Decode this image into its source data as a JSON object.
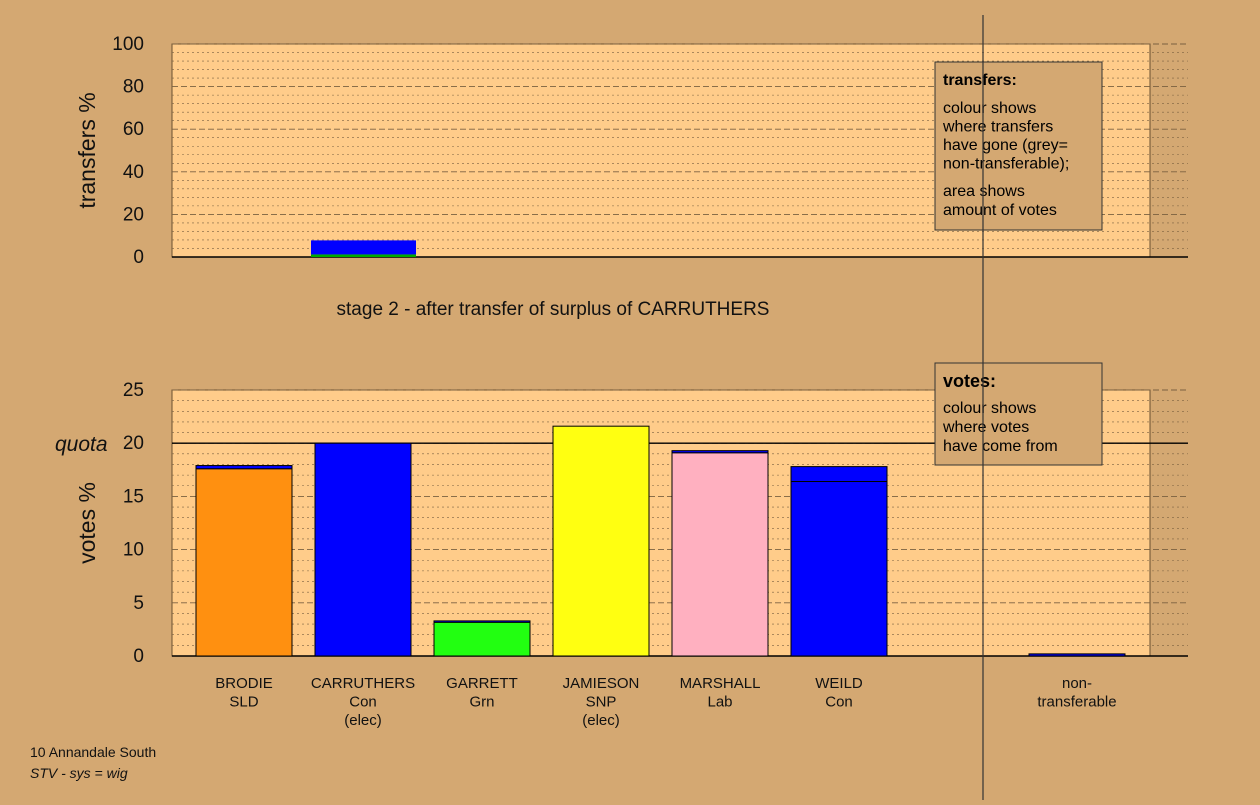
{
  "colors": {
    "page_bg": "#d4a872",
    "plot_bg": "#ffcc8a",
    "grid": "#7a6040",
    "axis": "#000000"
  },
  "chart_data": [
    {
      "type": "bar",
      "panel": "transfers",
      "ylabel": "transfers %",
      "ylim": [
        0,
        100
      ],
      "yticks": [
        0,
        20,
        40,
        60,
        80,
        100
      ],
      "grid": true,
      "bars": [
        {
          "category": "CARRUTHERS",
          "segments": [
            {
              "from": 0,
              "to": 1.2,
              "color": "#00aa00"
            },
            {
              "from": 1.2,
              "to": 7.8,
              "color": "#0000ff"
            }
          ]
        }
      ],
      "legend": {
        "placement": "top-right",
        "title": "transfers:",
        "lines1": [
          "colour shows",
          "where transfers",
          "have gone (grey=",
          "non-transferable);"
        ],
        "lines2": [
          "area shows",
          "amount of votes"
        ]
      }
    },
    {
      "type": "bar",
      "panel": "votes",
      "ylabel": "votes %",
      "ylim": [
        0,
        25
      ],
      "yticks": [
        0,
        5,
        10,
        15,
        20,
        25
      ],
      "quota": {
        "label": "quota",
        "value": 20
      },
      "grid": true,
      "categories": [
        {
          "name": "BRODIE",
          "party": "SLD",
          "note": ""
        },
        {
          "name": "CARRUTHERS",
          "party": "Con",
          "note": "(elec)"
        },
        {
          "name": "GARRETT",
          "party": "Grn",
          "note": ""
        },
        {
          "name": "JAMIESON",
          "party": "SNP",
          "note": "(elec)"
        },
        {
          "name": "MARSHALL",
          "party": "Lab",
          "note": ""
        },
        {
          "name": "WEILD",
          "party": "Con",
          "note": ""
        },
        {
          "name": "",
          "party": "",
          "note": ""
        },
        {
          "name": "non-",
          "party": "transferable",
          "note": ""
        }
      ],
      "bars": [
        {
          "category": "BRODIE",
          "color": "#ff9010",
          "value": 17.6,
          "transfer": 0.3,
          "transfer_color": "#0000ff"
        },
        {
          "category": "CARRUTHERS",
          "color": "#0000ff",
          "value": 20.0,
          "transfer": 0,
          "transfer_color": "#0000ff"
        },
        {
          "category": "GARRETT",
          "color": "#22ff11",
          "value": 3.2,
          "transfer": 0.1,
          "transfer_color": "#0000ff"
        },
        {
          "category": "JAMIESON",
          "color": "#ffff11",
          "value": 21.6,
          "transfer": 0,
          "transfer_color": "#0000ff"
        },
        {
          "category": "MARSHALL",
          "color": "#ffb0c0",
          "value": 19.1,
          "transfer": 0.2,
          "transfer_color": "#0000ff"
        },
        {
          "category": "WEILD",
          "color": "#0000ff",
          "value": 16.4,
          "transfer": 1.4,
          "transfer_color": "#0000ff"
        },
        {
          "category": "",
          "color": "#808080",
          "value": 0,
          "transfer": 0,
          "transfer_color": "#0000ff"
        },
        {
          "category": "non-transferable",
          "color": "#808080",
          "value": 0,
          "transfer": 0.2,
          "transfer_color": "#0000ff"
        }
      ],
      "legend": {
        "placement": "top-right",
        "title": "votes:",
        "lines": [
          "colour shows",
          "where votes",
          "have come from"
        ]
      }
    }
  ],
  "stage_title": "stage 2 - after transfer of surplus of CARRUTHERS",
  "footer": {
    "ward": "10 Annandale South",
    "system": "STV - sys = wig"
  }
}
